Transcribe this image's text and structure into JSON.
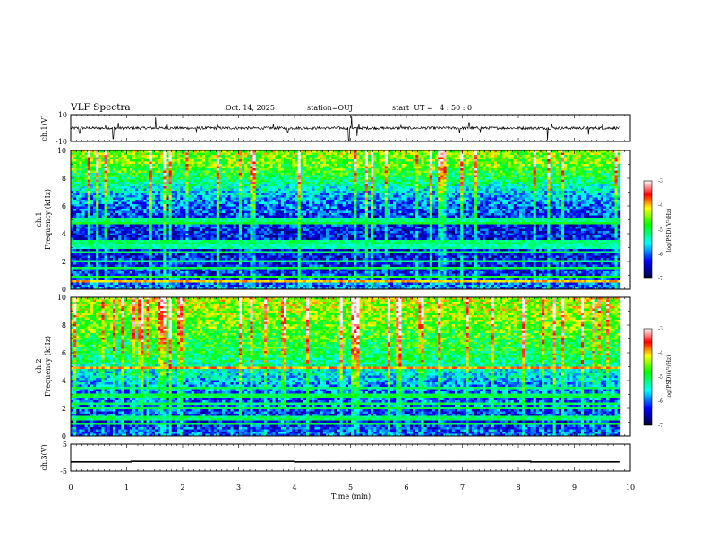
{
  "header": {
    "title": "VLF Spectra",
    "date": "Oct. 14, 2025",
    "station": "station=OUJ",
    "start_ut": "start  UT =   4 : 50 : 0"
  },
  "chart_data": [
    {
      "type": "line",
      "panel": "ch1-waveform",
      "ylabel": "ch.1(V)",
      "ylim": [
        -10,
        10
      ],
      "yticks": [
        "10",
        "-10"
      ],
      "xlim": [
        0,
        10
      ],
      "x_end": 9.82,
      "baseline": 0,
      "noise_amplitude": 1.0,
      "spikes": [
        {
          "x": 0.16,
          "y": -4
        },
        {
          "x": 0.62,
          "y": 2
        },
        {
          "x": 0.76,
          "y": -8
        },
        {
          "x": 0.85,
          "y": 4
        },
        {
          "x": 1.52,
          "y": 8
        },
        {
          "x": 1.72,
          "y": 3
        },
        {
          "x": 2.25,
          "y": -3
        },
        {
          "x": 2.62,
          "y": 2
        },
        {
          "x": 3.62,
          "y": 3
        },
        {
          "x": 3.88,
          "y": -3
        },
        {
          "x": 4.97,
          "y": -10
        },
        {
          "x": 5.02,
          "y": 9
        },
        {
          "x": 5.12,
          "y": -6
        },
        {
          "x": 5.15,
          "y": 3
        },
        {
          "x": 5.9,
          "y": 2
        },
        {
          "x": 6.95,
          "y": -4
        },
        {
          "x": 7.12,
          "y": 4
        },
        {
          "x": 7.32,
          "y": -3
        },
        {
          "x": 8.52,
          "y": -9
        },
        {
          "x": 8.6,
          "y": 3
        },
        {
          "x": 9.25,
          "y": -5
        },
        {
          "x": 9.5,
          "y": 3
        }
      ]
    },
    {
      "type": "heatmap",
      "panel": "ch1-spectrogram",
      "title": "ch.1",
      "ylabel": "Frequency (kHz)",
      "ylim": [
        0,
        10
      ],
      "yticks": [
        "0",
        "2",
        "4",
        "6",
        "8",
        "10"
      ],
      "xlim": [
        0,
        10
      ],
      "x_end": 9.82,
      "colorbar": {
        "label": "log(PSD)(V²/Hz)",
        "range": [
          -7,
          -3
        ],
        "ticks": [
          "-3",
          "-4",
          "-5",
          "-6",
          "-7"
        ]
      },
      "profile": [
        -5.9,
        -6.2,
        -6.3,
        -6.35,
        -6.3,
        -6.2,
        -6.0,
        -5.6,
        -5.0,
        -4.6,
        -4.4
      ],
      "bands": [
        {
          "f": 0.55,
          "level": -4.0
        },
        {
          "f": 0.9,
          "level": -4.8
        },
        {
          "f": 1.55,
          "level": -5.0
        },
        {
          "f": 2.0,
          "level": -5.2
        },
        {
          "f": 2.6,
          "level": -5.1
        },
        {
          "f": 3.05,
          "level": -5.3
        },
        {
          "f": 3.4,
          "level": -5.1
        },
        {
          "f": 4.7,
          "level": -4.9
        },
        {
          "f": 5.0,
          "level": -5.2
        }
      ]
    },
    {
      "type": "heatmap",
      "panel": "ch2-spectrogram",
      "title": "ch.2",
      "ylabel": "Frequency (kHz)",
      "ylim": [
        0,
        10
      ],
      "yticks": [
        "0",
        "2",
        "4",
        "6",
        "8",
        "10"
      ],
      "xlim": [
        0,
        10
      ],
      "x_end": 9.82,
      "colorbar": {
        "label": "log(PSD)(V²/Hz)",
        "range": [
          -7,
          -3
        ],
        "ticks": [
          "-3",
          "-4",
          "-5",
          "-6",
          "-7"
        ]
      },
      "profile": [
        -6.0,
        -6.3,
        -6.1,
        -6.0,
        -5.7,
        -5.3,
        -5.0,
        -4.8,
        -4.6,
        -4.4,
        -4.3
      ],
      "bands": [
        {
          "f": 0.9,
          "level": -5.0
        },
        {
          "f": 1.3,
          "level": -5.1
        },
        {
          "f": 2.0,
          "level": -5.0
        },
        {
          "f": 2.4,
          "level": -5.1
        },
        {
          "f": 2.9,
          "level": -5.0
        },
        {
          "f": 3.5,
          "level": -5.1
        },
        {
          "f": 4.9,
          "level": -3.9
        }
      ]
    },
    {
      "type": "line",
      "panel": "ch3-signal",
      "ylabel": "ch.3(V)",
      "ylim": [
        -5,
        5
      ],
      "yticks": [
        "5",
        "-5"
      ],
      "xlim": [
        0,
        10
      ],
      "x_end": 9.82,
      "series": [
        {
          "x": [
            0,
            1.08,
            1.08,
            3.98,
            4.0,
            8.22,
            8.22,
            9.82
          ],
          "values": [
            -1.6,
            -1.6,
            -1.4,
            -1.4,
            -1.6,
            -1.4,
            -1.6,
            -1.6
          ]
        }
      ]
    }
  ],
  "time_axis": {
    "label": "Time (min)",
    "ticks": [
      "0",
      "1",
      "2",
      "3",
      "4",
      "5",
      "6",
      "7",
      "8",
      "9",
      "10"
    ]
  }
}
